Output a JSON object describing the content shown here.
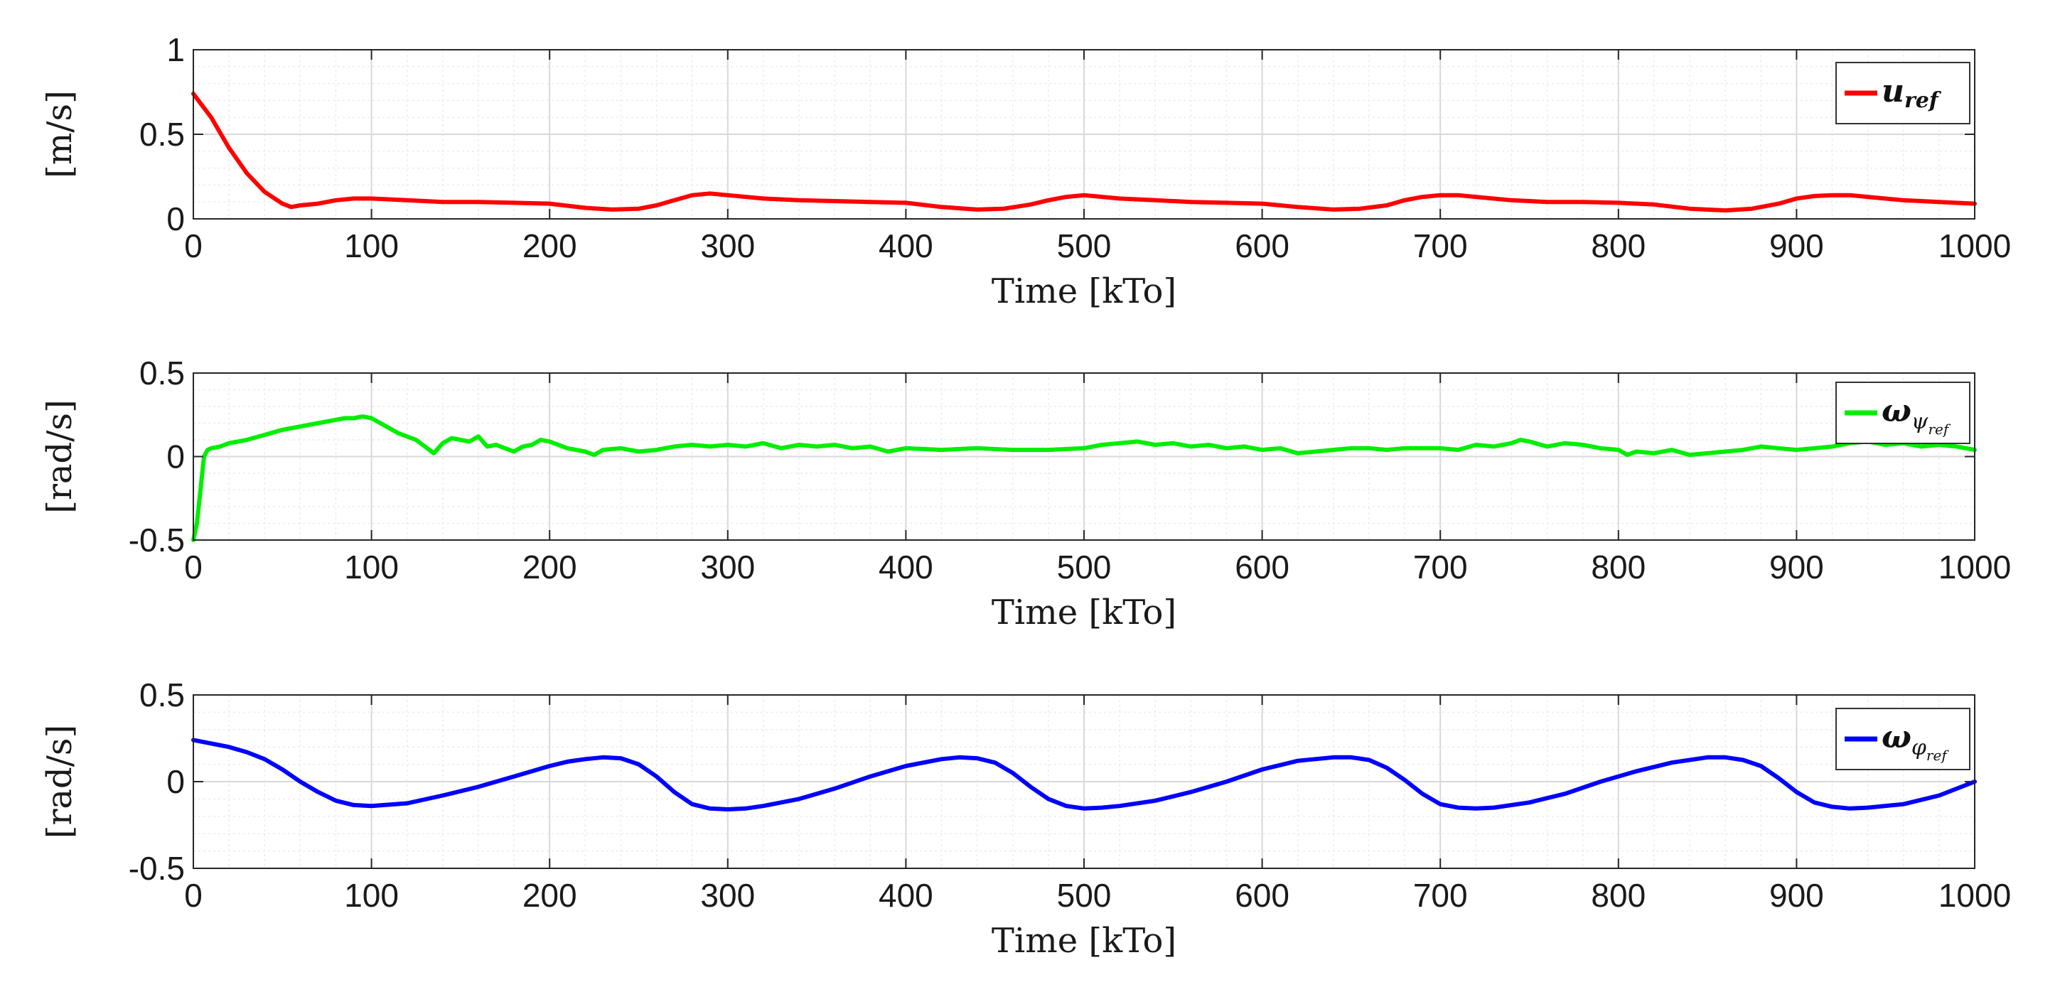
{
  "chart_data": [
    {
      "type": "line",
      "xlabel": "Time [kTo]",
      "ylabel": "[m/s]",
      "xlim": [
        0,
        1000
      ],
      "ylim": [
        0,
        1
      ],
      "xticks": [
        "0",
        "100",
        "200",
        "300",
        "400",
        "500",
        "600",
        "700",
        "800",
        "900",
        "1000"
      ],
      "yticks": [
        "0",
        "0.5",
        "1"
      ],
      "grid": true,
      "legend_position": "top-right",
      "legend": {
        "base": "u",
        "sub": "ref"
      },
      "series": [
        {
          "name": "u_ref",
          "color": "#ff0000",
          "x": [
            0,
            10,
            20,
            30,
            40,
            50,
            55,
            60,
            70,
            80,
            90,
            100,
            120,
            140,
            160,
            180,
            200,
            220,
            235,
            250,
            260,
            270,
            280,
            290,
            300,
            320,
            340,
            360,
            380,
            400,
            420,
            440,
            455,
            470,
            480,
            490,
            500,
            520,
            540,
            560,
            580,
            600,
            620,
            640,
            655,
            670,
            680,
            690,
            700,
            710,
            720,
            740,
            760,
            780,
            800,
            820,
            840,
            860,
            875,
            890,
            900,
            910,
            920,
            930,
            940,
            960,
            980,
            1000
          ],
          "values": [
            0.74,
            0.6,
            0.42,
            0.27,
            0.16,
            0.09,
            0.07,
            0.08,
            0.09,
            0.11,
            0.12,
            0.12,
            0.11,
            0.1,
            0.1,
            0.095,
            0.09,
            0.065,
            0.055,
            0.06,
            0.08,
            0.11,
            0.14,
            0.15,
            0.14,
            0.12,
            0.11,
            0.105,
            0.1,
            0.095,
            0.07,
            0.055,
            0.06,
            0.085,
            0.11,
            0.13,
            0.14,
            0.12,
            0.11,
            0.1,
            0.095,
            0.09,
            0.07,
            0.055,
            0.06,
            0.08,
            0.11,
            0.13,
            0.14,
            0.14,
            0.13,
            0.11,
            0.1,
            0.1,
            0.095,
            0.085,
            0.06,
            0.05,
            0.06,
            0.09,
            0.12,
            0.135,
            0.14,
            0.14,
            0.13,
            0.11,
            0.1,
            0.09
          ]
        }
      ]
    },
    {
      "type": "line",
      "xlabel": "Time [kTo]",
      "ylabel": "[rad/s]",
      "xlim": [
        0,
        1000
      ],
      "ylim": [
        -0.5,
        0.5
      ],
      "xticks": [
        "0",
        "100",
        "200",
        "300",
        "400",
        "500",
        "600",
        "700",
        "800",
        "900",
        "1000"
      ],
      "yticks": [
        "-0.5",
        "0",
        "0.5"
      ],
      "grid": true,
      "legend_position": "top-right",
      "legend": {
        "base": "ω",
        "sub": "ψ",
        "subsub": "ref"
      },
      "series": [
        {
          "name": "omega_psi_ref",
          "color": "#00ee00",
          "x": [
            0,
            2,
            4,
            6,
            8,
            10,
            15,
            20,
            25,
            30,
            40,
            50,
            60,
            70,
            80,
            85,
            90,
            95,
            100,
            105,
            110,
            115,
            120,
            125,
            130,
            135,
            140,
            145,
            150,
            155,
            160,
            165,
            170,
            175,
            180,
            185,
            190,
            195,
            200,
            210,
            220,
            225,
            230,
            240,
            250,
            260,
            270,
            280,
            290,
            300,
            310,
            320,
            330,
            340,
            350,
            360,
            370,
            380,
            390,
            400,
            420,
            440,
            460,
            480,
            500,
            510,
            520,
            530,
            540,
            550,
            560,
            570,
            580,
            590,
            600,
            610,
            620,
            630,
            640,
            650,
            660,
            670,
            680,
            690,
            700,
            710,
            720,
            730,
            740,
            745,
            750,
            760,
            770,
            780,
            790,
            800,
            805,
            810,
            820,
            830,
            840,
            850,
            860,
            870,
            880,
            890,
            900,
            910,
            920,
            930,
            940,
            950,
            960,
            970,
            980,
            990,
            1000
          ],
          "values": [
            -0.5,
            -0.4,
            -0.2,
            0.0,
            0.04,
            0.05,
            0.06,
            0.08,
            0.09,
            0.1,
            0.13,
            0.16,
            0.18,
            0.2,
            0.22,
            0.23,
            0.23,
            0.24,
            0.23,
            0.2,
            0.17,
            0.14,
            0.12,
            0.1,
            0.06,
            0.02,
            0.08,
            0.11,
            0.1,
            0.09,
            0.12,
            0.06,
            0.07,
            0.05,
            0.03,
            0.06,
            0.07,
            0.1,
            0.09,
            0.05,
            0.03,
            0.01,
            0.04,
            0.05,
            0.03,
            0.04,
            0.06,
            0.07,
            0.06,
            0.07,
            0.06,
            0.08,
            0.05,
            0.07,
            0.06,
            0.07,
            0.05,
            0.06,
            0.03,
            0.05,
            0.04,
            0.05,
            0.04,
            0.04,
            0.05,
            0.07,
            0.08,
            0.09,
            0.07,
            0.08,
            0.06,
            0.07,
            0.05,
            0.06,
            0.04,
            0.05,
            0.02,
            0.03,
            0.04,
            0.05,
            0.05,
            0.04,
            0.05,
            0.05,
            0.05,
            0.04,
            0.07,
            0.06,
            0.08,
            0.1,
            0.09,
            0.06,
            0.08,
            0.07,
            0.05,
            0.04,
            0.01,
            0.03,
            0.02,
            0.04,
            0.01,
            0.02,
            0.03,
            0.04,
            0.06,
            0.05,
            0.04,
            0.05,
            0.06,
            0.08,
            0.09,
            0.07,
            0.08,
            0.06,
            0.07,
            0.06,
            0.04
          ]
        }
      ]
    },
    {
      "type": "line",
      "xlabel": "Time [kTo]",
      "ylabel": "[rad/s]",
      "xlim": [
        0,
        1000
      ],
      "ylim": [
        -0.5,
        0.5
      ],
      "xticks": [
        "0",
        "100",
        "200",
        "300",
        "400",
        "500",
        "600",
        "700",
        "800",
        "900",
        "1000"
      ],
      "yticks": [
        "-0.5",
        "0",
        "0.5"
      ],
      "grid": true,
      "legend_position": "top-right",
      "legend": {
        "base": "ω",
        "sub": "φ",
        "subsub": "ref"
      },
      "series": [
        {
          "name": "omega_phi_ref",
          "color": "#0000ff",
          "x": [
            0,
            10,
            20,
            30,
            40,
            50,
            60,
            70,
            80,
            90,
            100,
            120,
            140,
            160,
            180,
            200,
            210,
            220,
            230,
            240,
            250,
            260,
            270,
            280,
            290,
            300,
            310,
            320,
            340,
            360,
            380,
            400,
            420,
            430,
            440,
            450,
            460,
            470,
            480,
            490,
            500,
            510,
            520,
            540,
            560,
            580,
            600,
            620,
            640,
            650,
            660,
            670,
            680,
            690,
            700,
            710,
            720,
            730,
            750,
            770,
            790,
            810,
            830,
            850,
            860,
            870,
            880,
            890,
            900,
            910,
            920,
            930,
            940,
            960,
            980,
            1000
          ],
          "values": [
            0.24,
            0.22,
            0.2,
            0.17,
            0.13,
            0.07,
            0.0,
            -0.06,
            -0.11,
            -0.135,
            -0.14,
            -0.125,
            -0.08,
            -0.03,
            0.03,
            0.09,
            0.115,
            0.13,
            0.14,
            0.135,
            0.1,
            0.03,
            -0.06,
            -0.13,
            -0.155,
            -0.16,
            -0.155,
            -0.14,
            -0.1,
            -0.04,
            0.03,
            0.09,
            0.13,
            0.14,
            0.135,
            0.11,
            0.05,
            -0.03,
            -0.1,
            -0.14,
            -0.155,
            -0.15,
            -0.14,
            -0.11,
            -0.06,
            0.0,
            0.07,
            0.12,
            0.14,
            0.14,
            0.125,
            0.08,
            0.01,
            -0.07,
            -0.13,
            -0.15,
            -0.155,
            -0.15,
            -0.12,
            -0.07,
            0.0,
            0.06,
            0.11,
            0.14,
            0.14,
            0.125,
            0.09,
            0.02,
            -0.06,
            -0.12,
            -0.145,
            -0.155,
            -0.15,
            -0.13,
            -0.08,
            0.0
          ]
        }
      ]
    }
  ]
}
